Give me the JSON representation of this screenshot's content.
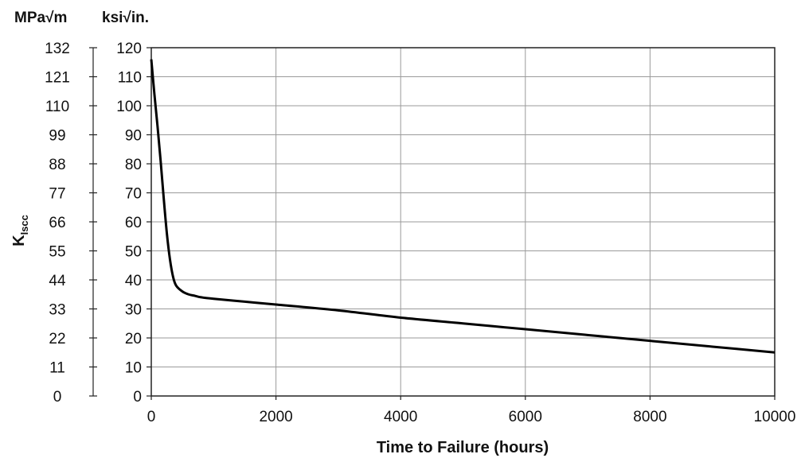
{
  "chart_data": {
    "type": "line",
    "xlabel": "Time to Failure (hours)",
    "ylabel_main": "K",
    "ylabel_sub": "Iscc",
    "unit_label_left": "MPa√m",
    "unit_label_right": "ksi√in.",
    "xlim": [
      0,
      10000
    ],
    "x_ticks": [
      "0",
      "2000",
      "4000",
      "6000",
      "8000",
      "10000"
    ],
    "ylim_ksi": [
      0,
      120
    ],
    "y_ticks_ksi": [
      "0",
      "10",
      "20",
      "30",
      "40",
      "50",
      "60",
      "70",
      "80",
      "90",
      "100",
      "110",
      "120"
    ],
    "y_ticks_mpa": [
      "0",
      "11",
      "22",
      "33",
      "44",
      "55",
      "66",
      "77",
      "88",
      "99",
      "110",
      "121",
      "132"
    ],
    "grid": true,
    "series": [
      {
        "x": [
          0,
          50,
          100,
          150,
          200,
          250,
          300,
          350,
          400,
          500,
          600,
          700,
          800,
          1000,
          1500,
          2000,
          3000,
          4000,
          5000,
          6000,
          7000,
          8000,
          9000,
          10000
        ],
        "y": [
          116,
          104,
          93,
          81,
          68,
          56,
          47,
          41,
          38,
          36,
          35,
          34.5,
          34,
          33.5,
          32.5,
          31.5,
          29.5,
          27,
          25,
          23,
          21,
          19,
          17,
          15
        ]
      }
    ]
  }
}
